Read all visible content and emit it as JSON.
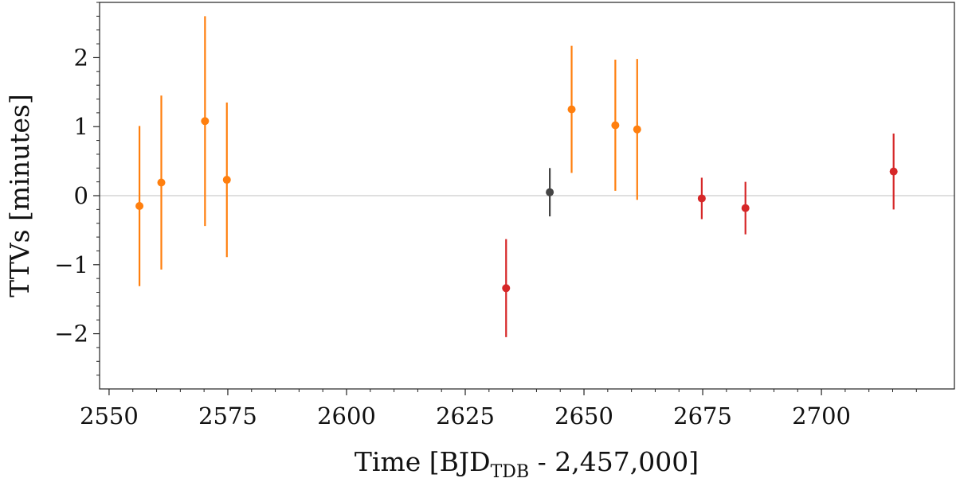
{
  "chart_data": {
    "type": "scatter",
    "xlabel": {
      "main": "Time [BJD",
      "subscript": "TDB",
      "suffix": " - 2,457,000]"
    },
    "ylabel": "TTVs [minutes]",
    "xlim": [
      2548,
      2728
    ],
    "ylim": [
      -2.8,
      2.8
    ],
    "xticks": [
      2550,
      2575,
      2600,
      2625,
      2650,
      2675,
      2700
    ],
    "xtick_labels": [
      "2550",
      "2575",
      "2600",
      "2625",
      "2650",
      "2675",
      "2700"
    ],
    "yticks": [
      -2,
      -1,
      0,
      1,
      2
    ],
    "ytick_labels": [
      "−2",
      "−1",
      "0",
      "1",
      "2"
    ],
    "reference_line": {
      "y": 0,
      "color": "#cccccc"
    },
    "grid": false,
    "series": [
      {
        "color": "#ff7f0e",
        "points": [
          {
            "x": 2556.4,
            "y": -0.15,
            "err": 1.16
          },
          {
            "x": 2561.0,
            "y": 0.19,
            "err": 1.26
          },
          {
            "x": 2570.2,
            "y": 1.08,
            "err": 1.52
          },
          {
            "x": 2574.8,
            "y": 0.23,
            "err": 1.12
          },
          {
            "x": 2647.4,
            "y": 1.25,
            "err": 0.92
          },
          {
            "x": 2656.6,
            "y": 1.02,
            "err": 0.95
          },
          {
            "x": 2661.2,
            "y": 0.96,
            "err": 1.02
          }
        ]
      },
      {
        "color": "#d62728",
        "points": [
          {
            "x": 2633.6,
            "y": -1.34,
            "err": 0.71
          },
          {
            "x": 2674.8,
            "y": -0.04,
            "err": 0.3
          },
          {
            "x": 2684.0,
            "y": -0.18,
            "err": 0.38
          },
          {
            "x": 2715.2,
            "y": 0.35,
            "err": 0.55
          }
        ]
      },
      {
        "color": "#444444",
        "points": [
          {
            "x": 2642.8,
            "y": 0.05,
            "err": 0.35
          }
        ]
      }
    ]
  }
}
